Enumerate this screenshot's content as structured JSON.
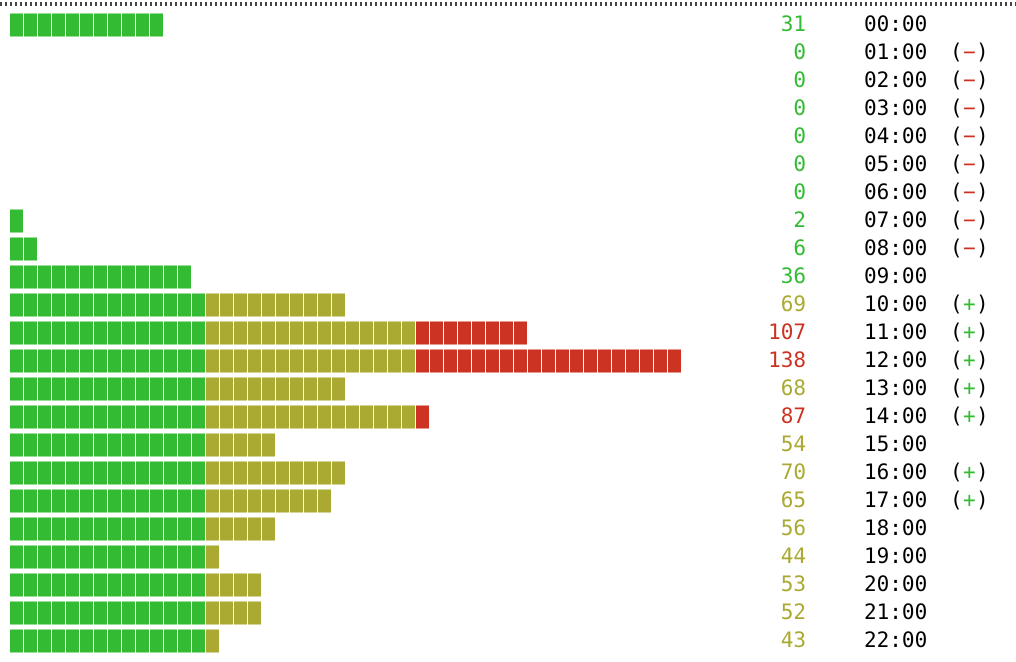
{
  "brackets": [
    "(",
    ")"
  ],
  "colors": {
    "low": "#33bb33",
    "mid": "#aaaa33",
    "high": "#cc3322",
    "minus": "#cc3322",
    "plus": "#33bb33",
    "text": "#000000"
  },
  "rows": [
    {
      "count": 31,
      "time": "00:00"
    },
    {
      "count": 0,
      "time": "01:00",
      "trend": "−"
    },
    {
      "count": 0,
      "time": "02:00",
      "trend": "−"
    },
    {
      "count": 0,
      "time": "03:00",
      "trend": "−"
    },
    {
      "count": 0,
      "time": "04:00",
      "trend": "−"
    },
    {
      "count": 0,
      "time": "05:00",
      "trend": "−"
    },
    {
      "count": 0,
      "time": "06:00",
      "trend": "−"
    },
    {
      "count": 2,
      "time": "07:00",
      "trend": "−"
    },
    {
      "count": 6,
      "time": "08:00",
      "trend": "−"
    },
    {
      "count": 36,
      "time": "09:00"
    },
    {
      "count": 69,
      "time": "10:00",
      "trend": "+"
    },
    {
      "count": 107,
      "time": "11:00",
      "trend": "+"
    },
    {
      "count": 138,
      "time": "12:00",
      "trend": "+"
    },
    {
      "count": 68,
      "time": "13:00",
      "trend": "+"
    },
    {
      "count": 87,
      "time": "14:00",
      "trend": "+"
    },
    {
      "count": 54,
      "time": "15:00"
    },
    {
      "count": 70,
      "time": "16:00",
      "trend": "+"
    },
    {
      "count": 65,
      "time": "17:00",
      "trend": "+"
    },
    {
      "count": 56,
      "time": "18:00"
    },
    {
      "count": 44,
      "time": "19:00"
    },
    {
      "count": 53,
      "time": "20:00"
    },
    {
      "count": 52,
      "time": "21:00"
    },
    {
      "count": 43,
      "time": "22:00"
    }
  ]
}
